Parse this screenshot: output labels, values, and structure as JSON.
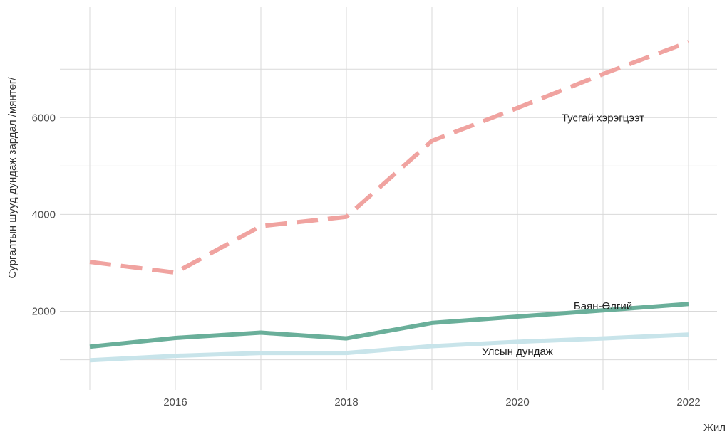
{
  "chart_data": {
    "type": "line",
    "xlabel": "Жил",
    "ylabel": "Сургалтын шууд дундаж зардал /мянтөг/",
    "xlim": [
      2015,
      2022
    ],
    "ylim": [
      700,
      7900
    ],
    "x_ticks": [
      2016,
      2018,
      2020,
      2022
    ],
    "y_ticks": [
      2000,
      4000,
      6000
    ],
    "grid": true,
    "legend": "none",
    "x": [
      2015,
      2016,
      2017,
      2018,
      2019,
      2020,
      2021,
      2022
    ],
    "series": [
      {
        "name": "Тусгай хэрэгцээт",
        "values": [
          3020,
          2800,
          3760,
          3950,
          5520,
          6200,
          6900,
          7560
        ],
        "color": "#f0a3a0",
        "style": "dashed",
        "label_at": [
          2021,
          6000
        ]
      },
      {
        "name": "Баян-Өлгий",
        "values": [
          1270,
          1450,
          1560,
          1440,
          1760,
          1890,
          2020,
          2150
        ],
        "color": "#6aaf9a",
        "style": "solid",
        "label_at": [
          2021,
          2110
        ]
      },
      {
        "name": "Улсын дундаж",
        "values": [
          990,
          1080,
          1140,
          1140,
          1280,
          1370,
          1440,
          1520
        ],
        "color": "#c8e4ea",
        "style": "solid",
        "label_at": [
          2020,
          1170
        ]
      }
    ]
  }
}
